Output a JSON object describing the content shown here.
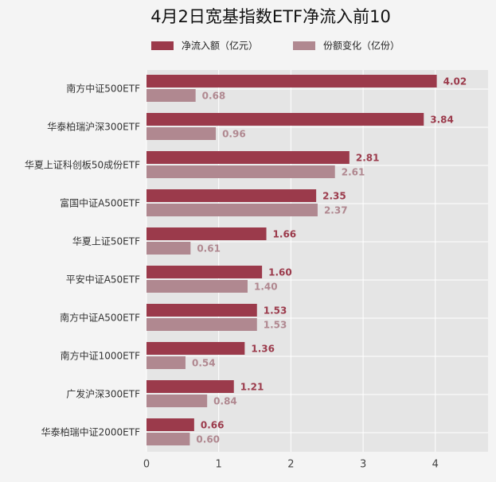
{
  "chart_data": {
    "type": "barh",
    "title": "4月2日宽基指数ETF净流入前10",
    "categories": [
      "南方中证500ETF",
      "华泰柏瑞沪深300ETF",
      "华夏上证科创板50成份ETF",
      "富国中证A500ETF",
      "华夏上证50ETF",
      "平安中证A50ETF",
      "南方中证A500ETF",
      "南方中证1000ETF",
      "广发沪深300ETF",
      "华泰柏瑞中证2000ETF"
    ],
    "series": [
      {
        "name": "净流入额（亿元）",
        "color": "#9b3a4b",
        "values": [
          4.02,
          3.84,
          2.81,
          2.35,
          1.66,
          1.6,
          1.53,
          1.36,
          1.21,
          0.66
        ],
        "value_labels": [
          "4.02",
          "3.84",
          "2.81",
          "2.35",
          "1.66",
          "1.60",
          "1.53",
          "1.36",
          "1.21",
          "0.66"
        ]
      },
      {
        "name": "份额变化（亿份）",
        "color": "#b08890",
        "values": [
          0.68,
          0.96,
          2.61,
          2.37,
          0.61,
          1.4,
          1.53,
          0.54,
          0.84,
          0.6
        ],
        "value_labels": [
          "0.68",
          "0.96",
          "2.61",
          "2.37",
          "0.61",
          "1.40",
          "1.53",
          "0.54",
          "0.84",
          "0.60"
        ]
      }
    ],
    "xlim": [
      0,
      4.73
    ],
    "xticks": [
      0,
      1,
      2,
      3,
      4
    ],
    "grid": true
  }
}
